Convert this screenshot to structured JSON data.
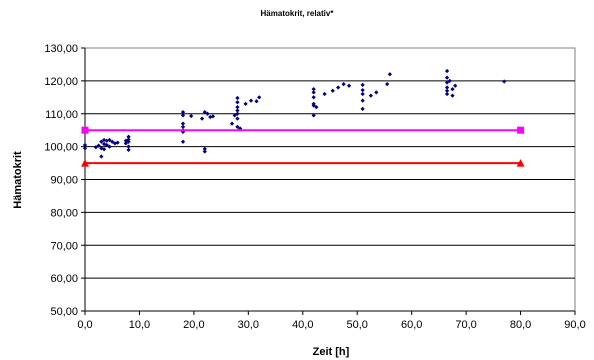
{
  "chart_data": {
    "type": "scatter",
    "title": "Hämatokrit, relativ*",
    "xlabel": "Zeit [h]",
    "ylabel": "Hämatokrit",
    "xlim": [
      0,
      90
    ],
    "ylim": [
      50,
      130
    ],
    "x_ticks": [
      "0,0",
      "10,0",
      "20,0",
      "30,0",
      "40,0",
      "50,0",
      "60,0",
      "70,0",
      "80,0",
      "90,0"
    ],
    "y_ticks": [
      "50,00",
      "60,00",
      "70,00",
      "80,00",
      "90,00",
      "100,00",
      "110,00",
      "120,00",
      "130,00"
    ],
    "grid": "horizontal major gridlines",
    "legend": "none",
    "colors": {
      "points": "#000080",
      "upper_line": "#ff00ff",
      "lower_line": "#ff0000",
      "plot_area": "#ffffff"
    },
    "series": [
      {
        "type": "scatter",
        "color": "#000080",
        "points": [
          [
            0,
            100.5
          ],
          [
            0,
            99.5
          ],
          [
            2,
            99.8
          ],
          [
            2.5,
            100.3
          ],
          [
            3,
            101.5
          ],
          [
            3,
            99.5
          ],
          [
            3,
            97
          ],
          [
            3.5,
            100.8
          ],
          [
            3.5,
            102
          ],
          [
            3.5,
            99.2
          ],
          [
            4,
            101.8
          ],
          [
            4,
            100.5
          ],
          [
            4.5,
            102
          ],
          [
            4.5,
            100
          ],
          [
            5,
            101.5
          ],
          [
            5.5,
            101
          ],
          [
            6,
            101.2
          ],
          [
            7.5,
            101.8
          ],
          [
            7.5,
            101
          ],
          [
            8,
            103
          ],
          [
            8,
            101.5
          ],
          [
            8,
            100
          ],
          [
            8,
            99
          ],
          [
            8,
            102.2
          ],
          [
            18,
            110.5
          ],
          [
            18,
            109.5
          ],
          [
            18,
            107
          ],
          [
            18,
            106
          ],
          [
            18,
            105
          ],
          [
            18,
            104.5
          ],
          [
            18,
            101.5
          ],
          [
            19.5,
            109.3
          ],
          [
            21.5,
            108.5
          ],
          [
            22,
            110.5
          ],
          [
            22,
            99.3
          ],
          [
            22,
            98.5
          ],
          [
            22.5,
            110
          ],
          [
            23,
            109
          ],
          [
            23.5,
            109.2
          ],
          [
            27,
            107
          ],
          [
            27.5,
            109.5
          ],
          [
            28,
            114.8
          ],
          [
            28,
            113.5
          ],
          [
            28,
            112
          ],
          [
            28,
            111
          ],
          [
            28,
            110
          ],
          [
            28,
            108.5
          ],
          [
            28,
            106
          ],
          [
            28.5,
            105.5
          ],
          [
            29.5,
            113
          ],
          [
            30.5,
            114
          ],
          [
            31.5,
            113.8
          ],
          [
            32,
            115
          ],
          [
            42,
            117.5
          ],
          [
            42,
            116.5
          ],
          [
            42,
            115
          ],
          [
            42,
            113
          ],
          [
            42,
            112.5
          ],
          [
            42,
            109.5
          ],
          [
            42.5,
            112
          ],
          [
            44,
            116
          ],
          [
            45.5,
            117
          ],
          [
            46.5,
            118
          ],
          [
            47.5,
            119
          ],
          [
            48.5,
            118.5
          ],
          [
            51,
            118.8
          ],
          [
            51,
            117.2
          ],
          [
            51,
            116
          ],
          [
            51,
            114
          ],
          [
            51,
            111.5
          ],
          [
            52.5,
            115.5
          ],
          [
            53.5,
            116.5
          ],
          [
            55.5,
            119
          ],
          [
            56,
            122
          ],
          [
            66.5,
            123
          ],
          [
            66.5,
            121
          ],
          [
            66.5,
            119.5
          ],
          [
            66.5,
            118
          ],
          [
            66.5,
            117
          ],
          [
            66.5,
            116
          ],
          [
            67,
            120
          ],
          [
            67.5,
            117.5
          ],
          [
            67.5,
            115.5
          ],
          [
            68,
            118.5
          ],
          [
            77,
            119.8
          ]
        ]
      },
      {
        "type": "line",
        "color": "#ff00ff",
        "marker": "square",
        "points": [
          [
            0,
            105
          ],
          [
            80,
            105
          ]
        ]
      },
      {
        "type": "line",
        "color": "#ff0000",
        "marker": "triangle",
        "points": [
          [
            0,
            95
          ],
          [
            80,
            95
          ]
        ]
      }
    ]
  }
}
